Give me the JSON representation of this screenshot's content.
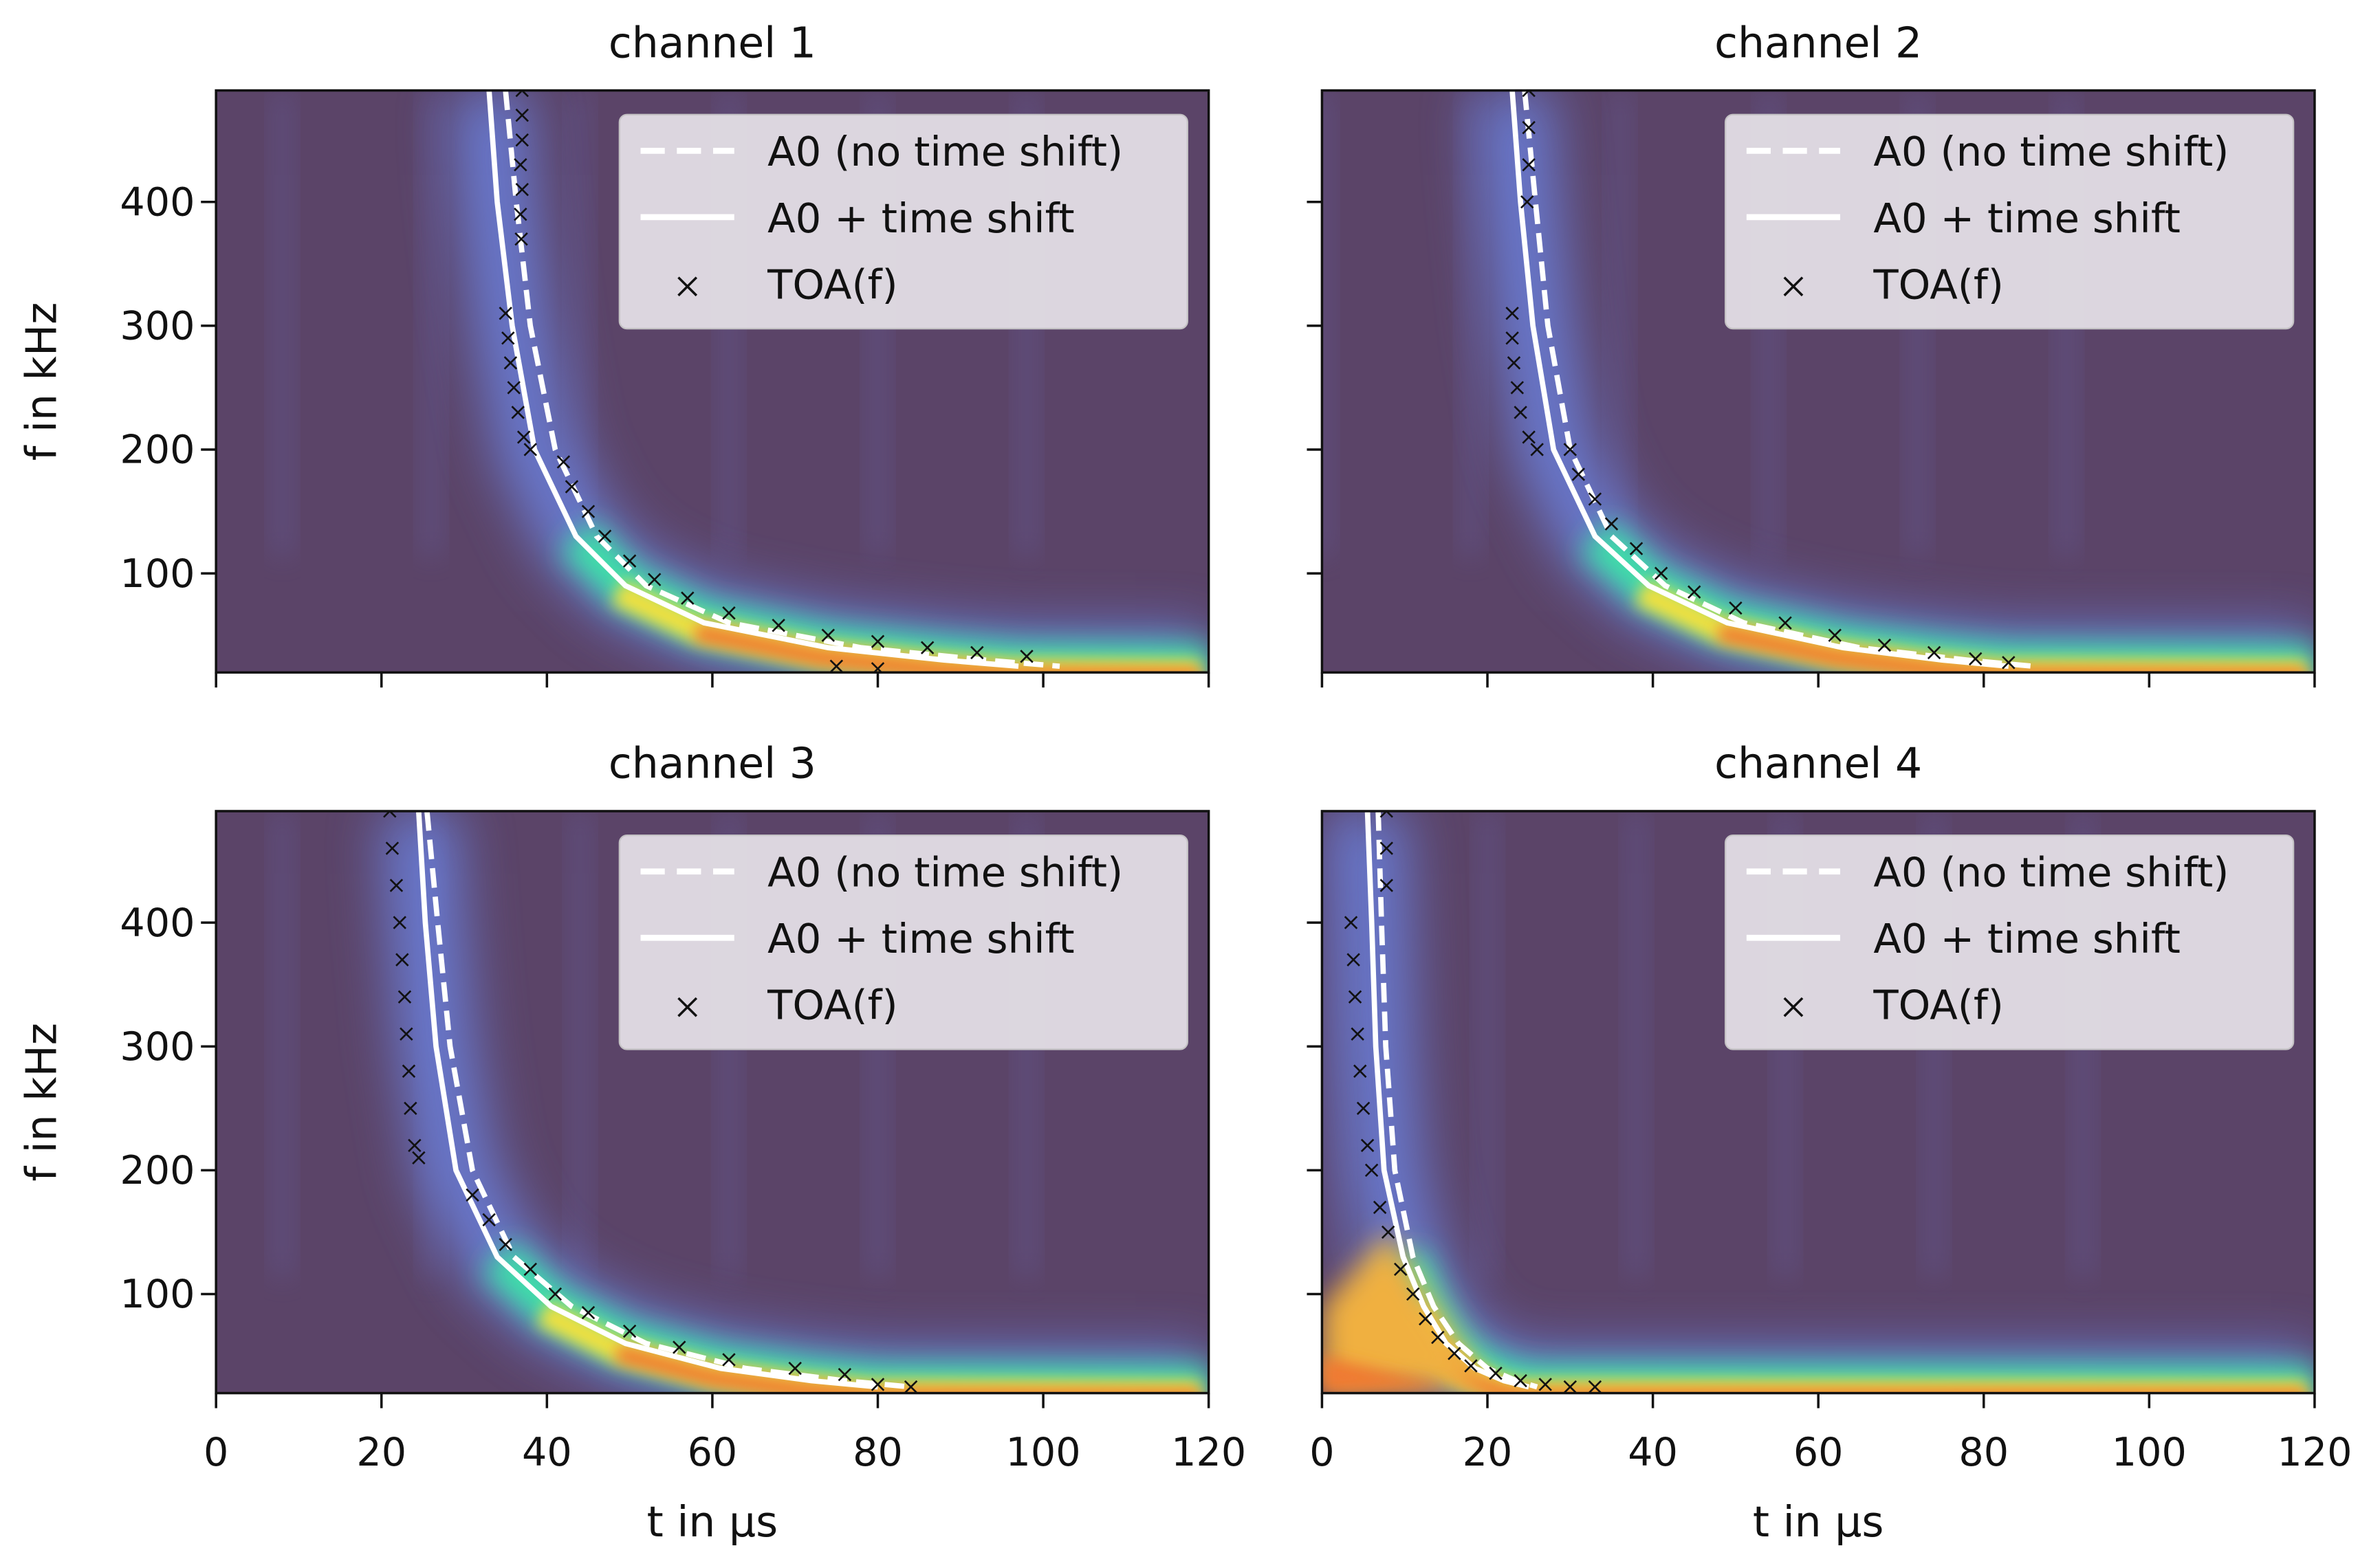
{
  "chart_data": [
    {
      "type": "heatmap",
      "title": "channel 1",
      "xlabel": "",
      "ylabel": "f in kHz",
      "xlim": [
        0,
        120
      ],
      "ylim": [
        20,
        490
      ],
      "xticks": [
        0,
        20,
        40,
        60,
        80,
        100,
        120
      ],
      "yticks": [
        100,
        200,
        300,
        400
      ],
      "legend": {
        "placement": "top-right",
        "entries": [
          "A0 (no time shift)",
          "A0 + time shift",
          "TOA(f)"
        ]
      },
      "series": [
        {
          "name": "A0 (no time shift)",
          "style": "dashed",
          "color": "#ffffff",
          "points": [
            [
              35,
              490
            ],
            [
              36.3,
              400
            ],
            [
              38,
              300
            ],
            [
              41,
              200
            ],
            [
              46,
              130
            ],
            [
              52,
              90
            ],
            [
              62,
              60
            ],
            [
              78,
              40
            ],
            [
              93,
              30
            ],
            [
              102,
              25
            ]
          ]
        },
        {
          "name": "A0 + time shift",
          "style": "solid",
          "color": "#ffffff",
          "points": [
            [
              33,
              490
            ],
            [
              34,
              400
            ],
            [
              35.8,
              300
            ],
            [
              38.5,
              200
            ],
            [
              43.5,
              130
            ],
            [
              49.5,
              90
            ],
            [
              59,
              60
            ],
            [
              74,
              40
            ],
            [
              88,
              30
            ],
            [
              97,
              25
            ]
          ]
        },
        {
          "name": "TOA(f)",
          "style": "marker-x",
          "color": "#000000",
          "points": [
            [
              37,
              490
            ],
            [
              37,
              470
            ],
            [
              37,
              450
            ],
            [
              36.8,
              430
            ],
            [
              37,
              410
            ],
            [
              36.8,
              390
            ],
            [
              36.9,
              370
            ],
            [
              35,
              310
            ],
            [
              35.3,
              290
            ],
            [
              35.6,
              270
            ],
            [
              36,
              250
            ],
            [
              36.5,
              230
            ],
            [
              37.2,
              210
            ],
            [
              38,
              200
            ],
            [
              42,
              190
            ],
            [
              43,
              170
            ],
            [
              45,
              150
            ],
            [
              47,
              130
            ],
            [
              50,
              110
            ],
            [
              53,
              95
            ],
            [
              57,
              80
            ],
            [
              62,
              68
            ],
            [
              68,
              58
            ],
            [
              74,
              50
            ],
            [
              80,
              45
            ],
            [
              86,
              40
            ],
            [
              92,
              36
            ],
            [
              98,
              33
            ],
            [
              75,
              25
            ],
            [
              80,
              23
            ]
          ]
        }
      ],
      "heat_colors": {
        "background": "#5b4468",
        "low": "#6a80dc",
        "mid": "#3ee0a8",
        "high": "#f07a30"
      }
    },
    {
      "type": "heatmap",
      "title": "channel 2",
      "xlabel": "",
      "ylabel": "",
      "xlim": [
        0,
        120
      ],
      "ylim": [
        20,
        490
      ],
      "xticks": [
        0,
        20,
        40,
        60,
        80,
        100,
        120
      ],
      "yticks": [
        100,
        200,
        300,
        400
      ],
      "legend": {
        "placement": "top-right",
        "entries": [
          "A0 (no time shift)",
          "A0 + time shift",
          "TOA(f)"
        ]
      },
      "series": [
        {
          "name": "A0 (no time shift)",
          "style": "dashed",
          "color": "#ffffff",
          "points": [
            [
              24.5,
              490
            ],
            [
              25.8,
              400
            ],
            [
              27.3,
              300
            ],
            [
              30,
              200
            ],
            [
              35,
              130
            ],
            [
              41.5,
              90
            ],
            [
              51,
              60
            ],
            [
              65,
              40
            ],
            [
              78,
              30
            ],
            [
              86,
              25
            ]
          ]
        },
        {
          "name": "A0 + time shift",
          "style": "solid",
          "color": "#ffffff",
          "points": [
            [
              23,
              490
            ],
            [
              24,
              400
            ],
            [
              25.5,
              300
            ],
            [
              28,
              200
            ],
            [
              33,
              130
            ],
            [
              39.5,
              90
            ],
            [
              49,
              60
            ],
            [
              63,
              40
            ],
            [
              75,
              30
            ],
            [
              83,
              25
            ]
          ]
        },
        {
          "name": "TOA(f)",
          "style": "marker-x",
          "color": "#000000",
          "points": [
            [
              25,
              490
            ],
            [
              25,
              460
            ],
            [
              25,
              430
            ],
            [
              24.8,
              400
            ],
            [
              23,
              310
            ],
            [
              23,
              290
            ],
            [
              23.2,
              270
            ],
            [
              23.6,
              250
            ],
            [
              24,
              230
            ],
            [
              25,
              210
            ],
            [
              26,
              200
            ],
            [
              30,
              200
            ],
            [
              31,
              180
            ],
            [
              33,
              160
            ],
            [
              35,
              140
            ],
            [
              38,
              120
            ],
            [
              41,
              100
            ],
            [
              45,
              85
            ],
            [
              50,
              72
            ],
            [
              56,
              60
            ],
            [
              62,
              50
            ],
            [
              68,
              42
            ],
            [
              74,
              36
            ],
            [
              79,
              31
            ],
            [
              83,
              28
            ]
          ]
        }
      ],
      "heat_colors": {
        "background": "#5b4468",
        "low": "#6a80dc",
        "mid": "#3ee0a8",
        "high": "#f07a30"
      }
    },
    {
      "type": "heatmap",
      "title": "channel 3",
      "xlabel": "t in µs",
      "ylabel": "f in kHz",
      "xlim": [
        0,
        120
      ],
      "ylim": [
        20,
        490
      ],
      "xticks": [
        0,
        20,
        40,
        60,
        80,
        100,
        120
      ],
      "yticks": [
        100,
        200,
        300,
        400
      ],
      "legend": {
        "placement": "top-right",
        "entries": [
          "A0 (no time shift)",
          "A0 + time shift",
          "TOA(f)"
        ]
      },
      "series": [
        {
          "name": "A0 (no time shift)",
          "style": "dashed",
          "color": "#ffffff",
          "points": [
            [
              25.5,
              490
            ],
            [
              26.8,
              400
            ],
            [
              28.3,
              300
            ],
            [
              31,
              200
            ],
            [
              36,
              130
            ],
            [
              43,
              90
            ],
            [
              52,
              60
            ],
            [
              64,
              40
            ],
            [
              76,
              30
            ],
            [
              84,
              25
            ]
          ]
        },
        {
          "name": "A0 + time shift",
          "style": "solid",
          "color": "#ffffff",
          "points": [
            [
              24.5,
              490
            ],
            [
              25.3,
              400
            ],
            [
              26.6,
              300
            ],
            [
              29,
              200
            ],
            [
              34,
              130
            ],
            [
              40.5,
              90
            ],
            [
              49.5,
              60
            ],
            [
              61,
              40
            ],
            [
              72,
              30
            ],
            [
              80,
              25
            ]
          ]
        },
        {
          "name": "TOA(f)",
          "style": "marker-x",
          "color": "#000000",
          "points": [
            [
              21,
              490
            ],
            [
              21.3,
              460
            ],
            [
              21.8,
              430
            ],
            [
              22.2,
              400
            ],
            [
              22.5,
              370
            ],
            [
              22.8,
              340
            ],
            [
              23,
              310
            ],
            [
              23.3,
              280
            ],
            [
              23.5,
              250
            ],
            [
              24,
              220
            ],
            [
              24.5,
              210
            ],
            [
              31,
              180
            ],
            [
              33,
              160
            ],
            [
              35,
              140
            ],
            [
              38,
              120
            ],
            [
              41,
              100
            ],
            [
              45,
              85
            ],
            [
              50,
              70
            ],
            [
              56,
              57
            ],
            [
              62,
              47
            ],
            [
              70,
              40
            ],
            [
              76,
              35
            ],
            [
              80,
              27
            ],
            [
              84,
              25
            ]
          ]
        }
      ],
      "heat_colors": {
        "background": "#5b4468",
        "low": "#6a80dc",
        "mid": "#3ee0a8",
        "high": "#f07a30"
      }
    },
    {
      "type": "heatmap",
      "title": "channel 4",
      "xlabel": "t in µs",
      "ylabel": "",
      "xlim": [
        0,
        120
      ],
      "ylim": [
        20,
        490
      ],
      "xticks": [
        0,
        20,
        40,
        60,
        80,
        100,
        120
      ],
      "yticks": [
        100,
        200,
        300,
        400
      ],
      "legend": {
        "placement": "top-right",
        "entries": [
          "A0 (no time shift)",
          "A0 + time shift",
          "TOA(f)"
        ]
      },
      "series": [
        {
          "name": "A0 (no time shift)",
          "style": "dashed",
          "color": "#ffffff",
          "points": [
            [
              6.8,
              490
            ],
            [
              7.2,
              400
            ],
            [
              7.7,
              300
            ],
            [
              8.8,
              200
            ],
            [
              11,
              130
            ],
            [
              13.5,
              90
            ],
            [
              16.5,
              60
            ],
            [
              20,
              40
            ],
            [
              23.5,
              30
            ],
            [
              26,
              25
            ]
          ]
        },
        {
          "name": "A0 + time shift",
          "style": "solid",
          "color": "#ffffff",
          "points": [
            [
              5.5,
              490
            ],
            [
              6,
              400
            ],
            [
              6.5,
              300
            ],
            [
              7.5,
              200
            ],
            [
              9.8,
              130
            ],
            [
              12.3,
              90
            ],
            [
              15,
              60
            ],
            [
              18.5,
              40
            ],
            [
              22,
              30
            ],
            [
              25,
              25
            ]
          ]
        },
        {
          "name": "TOA(f)",
          "style": "marker-x",
          "color": "#000000",
          "points": [
            [
              7.8,
              490
            ],
            [
              7.8,
              460
            ],
            [
              7.8,
              430
            ],
            [
              3.5,
              400
            ],
            [
              3.8,
              370
            ],
            [
              4,
              340
            ],
            [
              4.3,
              310
            ],
            [
              4.6,
              280
            ],
            [
              5,
              250
            ],
            [
              5.5,
              220
            ],
            [
              6,
              200
            ],
            [
              7,
              170
            ],
            [
              8,
              150
            ],
            [
              9.5,
              120
            ],
            [
              11,
              100
            ],
            [
              12.5,
              80
            ],
            [
              14,
              65
            ],
            [
              16,
              52
            ],
            [
              18,
              42
            ],
            [
              21,
              36
            ],
            [
              24,
              30
            ],
            [
              27,
              27
            ],
            [
              30,
              25
            ],
            [
              33,
              25
            ]
          ]
        }
      ],
      "heat_colors": {
        "background": "#5b4468",
        "low": "#6a80dc",
        "mid": "#3ee0a8",
        "high": "#f07a30"
      }
    }
  ]
}
